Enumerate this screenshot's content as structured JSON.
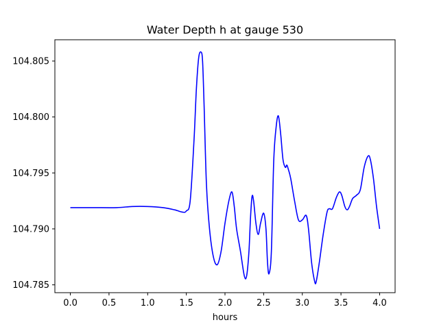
{
  "chart_data": {
    "type": "line",
    "title": "Water Depth h at gauge 530",
    "xlabel": "hours",
    "ylabel": "",
    "xlim": [
      -0.2,
      4.2
    ],
    "ylim": [
      104.7843,
      104.8069
    ],
    "xticks": [
      0.0,
      0.5,
      1.0,
      1.5,
      2.0,
      2.5,
      3.0,
      3.5,
      4.0
    ],
    "xtick_labels": [
      "0.0",
      "0.5",
      "1.0",
      "1.5",
      "2.0",
      "2.5",
      "3.0",
      "3.5",
      "4.0"
    ],
    "yticks": [
      104.785,
      104.79,
      104.795,
      104.8,
      104.805
    ],
    "ytick_labels": [
      "104.785",
      "104.790",
      "104.795",
      "104.800",
      "104.805"
    ],
    "grid": false,
    "series": [
      {
        "color": "#0000ff",
        "x": [
          0.0,
          0.3,
          0.6,
          0.8,
          1.0,
          1.2,
          1.35,
          1.45,
          1.5,
          1.55,
          1.6,
          1.63,
          1.66,
          1.69,
          1.71,
          1.73,
          1.76,
          1.8,
          1.85,
          1.9,
          1.95,
          2.0,
          2.05,
          2.09,
          2.12,
          2.15,
          2.2,
          2.25,
          2.28,
          2.31,
          2.33,
          2.35,
          2.37,
          2.4,
          2.43,
          2.46,
          2.5,
          2.53,
          2.55,
          2.57,
          2.6,
          2.63,
          2.66,
          2.69,
          2.72,
          2.75,
          2.78,
          2.8,
          2.82,
          2.85,
          2.9,
          2.95,
          3.0,
          3.05,
          3.08,
          3.12,
          3.16,
          3.18,
          3.22,
          3.27,
          3.32,
          3.35,
          3.39,
          3.44,
          3.48,
          3.51,
          3.55,
          3.58,
          3.61,
          3.65,
          3.7,
          3.75,
          3.8,
          3.85,
          3.88,
          3.92,
          3.96,
          4.0
        ],
        "y": [
          104.7919,
          104.7919,
          104.7919,
          104.792,
          104.792,
          104.7919,
          104.7917,
          104.7915,
          104.7916,
          104.7925,
          104.798,
          104.8025,
          104.8053,
          104.8058,
          104.805,
          104.801,
          104.794,
          104.79,
          104.7875,
          104.7868,
          104.788,
          104.7905,
          104.7925,
          104.7933,
          104.792,
          104.79,
          104.788,
          104.7858,
          104.7858,
          104.788,
          104.791,
          104.7929,
          104.7925,
          104.7905,
          104.7895,
          104.7905,
          104.7914,
          104.79,
          104.787,
          104.786,
          104.788,
          104.796,
          104.799,
          104.8001,
          104.7985,
          104.7962,
          104.7955,
          104.7957,
          104.7953,
          104.7945,
          104.7925,
          104.7908,
          104.7908,
          104.7912,
          104.79,
          104.787,
          104.7853,
          104.7853,
          104.787,
          104.7895,
          104.7915,
          104.7918,
          104.7918,
          104.7928,
          104.7933,
          104.793,
          104.792,
          104.7917,
          104.792,
          104.7927,
          104.793,
          104.7935,
          104.7955,
          104.7965,
          104.7962,
          104.7945,
          104.792,
          104.79
        ]
      }
    ]
  }
}
